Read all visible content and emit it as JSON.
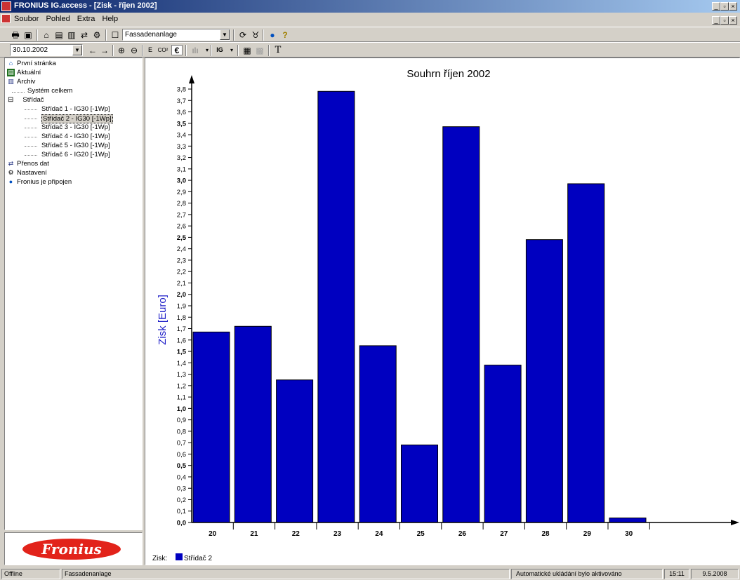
{
  "window": {
    "title": "FRONIUS IG.access - [Zisk - říjen 2002]"
  },
  "menu": {
    "items": [
      "Soubor",
      "Pohled",
      "Extra",
      "Help"
    ]
  },
  "toolbar": {
    "system_select": "Fassadenanlage",
    "date_select": "30.10.2002",
    "icons": [
      "print-icon",
      "export-icon",
      "home-icon",
      "current-icon",
      "archive-icon",
      "transfer-icon",
      "settings-icon",
      "properties-icon",
      "refresh-icon",
      "connect-icon",
      "globe-icon",
      "help-icon"
    ],
    "text_buttons": {
      "energy": "E",
      "co2": "CO²",
      "euro": "€",
      "ig": "IG",
      "text": "T"
    }
  },
  "tree": {
    "items": [
      {
        "label": "První stránka",
        "icon": "home-icon"
      },
      {
        "label": "Aktuální",
        "icon": "current-icon"
      },
      {
        "label": "Archiv",
        "icon": "archive-icon"
      },
      {
        "label": "Systém celkem"
      },
      {
        "label": "Střídač"
      },
      {
        "label": "Střídač 1 - IG30 [-1Wp]"
      },
      {
        "label": "Střídač 2 - IG30 [-1Wp]"
      },
      {
        "label": "Střídač 3 - IG30 [-1Wp]"
      },
      {
        "label": "Střídač 4 - IG30 [-1Wp]"
      },
      {
        "label": "Střídač 5 - IG30 [-1Wp]"
      },
      {
        "label": "Střídač 6 - IG20 [-1Wp]"
      },
      {
        "label": "Přenos dat",
        "icon": "transfer-icon"
      },
      {
        "label": "Nastavení",
        "icon": "settings-icon"
      },
      {
        "label": "Fronius je připojen",
        "icon": "globe-icon"
      }
    ],
    "collapse_sign": "⊟"
  },
  "logo": {
    "text": "Fronius"
  },
  "chart_data": {
    "type": "bar",
    "title": "Souhrn říjen 2002",
    "ylabel": "Zisk [Euro]",
    "xlabel": "",
    "categories": [
      "20",
      "21",
      "22",
      "23",
      "24",
      "25",
      "26",
      "27",
      "28",
      "29",
      "30"
    ],
    "series": [
      {
        "name": "Střídač 2",
        "values": [
          1.67,
          1.72,
          1.25,
          3.78,
          1.55,
          0.68,
          3.47,
          1.38,
          2.48,
          2.97,
          0.04
        ]
      }
    ],
    "ylim": [
      0,
      3.8
    ],
    "ytick_step": 0.1,
    "color": "#0000c0",
    "legend": {
      "prefix": "Zisk:",
      "placement": "bottom-left"
    }
  },
  "status": {
    "connection": "Offline",
    "system": "Fassadenanlage",
    "autosave": "Automatické ukládání bylo aktivováno",
    "time": "15:11",
    "date": "9.5.2008"
  }
}
